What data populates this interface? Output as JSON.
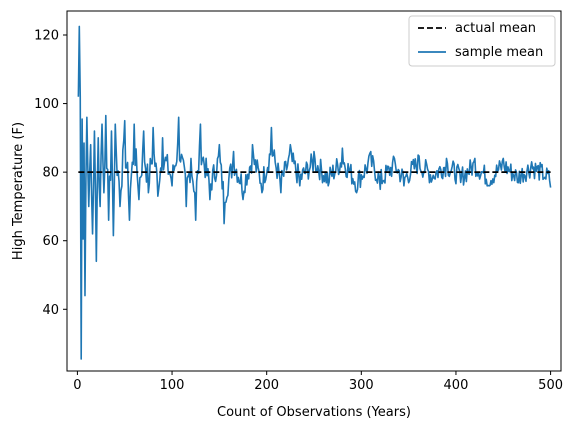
{
  "chart_data": {
    "type": "line",
    "xlabel": "Count of Observations (Years)",
    "ylabel": "High Temperature (F)",
    "xlim": [
      -11,
      511
    ],
    "ylim": [
      22,
      127
    ],
    "xticks": [
      0,
      100,
      200,
      300,
      400,
      500
    ],
    "yticks": [
      40,
      60,
      80,
      100,
      120
    ],
    "grid": false,
    "legend_position": "top-right",
    "series": [
      {
        "name": "actual mean",
        "style": "dashed",
        "color": "#000000",
        "x": [
          1,
          500
        ],
        "y": [
          80,
          80
        ]
      },
      {
        "name": "sample mean",
        "style": "solid",
        "color": "#1f77b4",
        "x_start": 1,
        "x_end": 500,
        "anchors": [
          [
            1,
            102
          ],
          [
            2,
            122.5
          ],
          [
            3,
            102
          ],
          [
            4,
            25.5
          ],
          [
            5,
            95.5
          ],
          [
            6,
            60.5
          ],
          [
            7,
            88.5
          ],
          [
            8,
            44
          ],
          [
            9,
            78
          ],
          [
            10,
            96
          ],
          [
            12,
            70
          ],
          [
            14,
            88
          ],
          [
            16,
            62
          ],
          [
            18,
            92
          ],
          [
            20,
            54
          ],
          [
            22,
            90
          ],
          [
            24,
            70
          ],
          [
            26,
            94
          ],
          [
            28,
            74
          ],
          [
            30,
            96.5
          ],
          [
            33,
            66
          ],
          [
            36,
            92
          ],
          [
            38,
            61.5
          ],
          [
            40,
            94
          ],
          [
            45,
            70
          ],
          [
            50,
            95
          ],
          [
            55,
            66
          ],
          [
            60,
            94
          ],
          [
            65,
            72
          ],
          [
            70,
            92
          ],
          [
            75,
            74
          ],
          [
            80,
            93
          ],
          [
            85,
            73
          ],
          [
            90,
            90
          ],
          [
            100,
            76
          ],
          [
            107,
            96
          ],
          [
            115,
            70
          ],
          [
            120,
            84
          ],
          [
            125,
            66
          ],
          [
            130,
            94
          ],
          [
            140,
            72
          ],
          [
            150,
            88
          ],
          [
            155,
            65
          ],
          [
            165,
            86
          ],
          [
            175,
            72
          ],
          [
            185,
            88
          ],
          [
            195,
            74
          ],
          [
            205,
            93
          ],
          [
            215,
            74
          ],
          [
            225,
            88
          ],
          [
            235,
            76
          ],
          [
            250,
            86
          ],
          [
            265,
            76
          ],
          [
            280,
            87
          ],
          [
            295,
            74
          ],
          [
            310,
            86
          ],
          [
            320,
            75
          ],
          [
            335,
            84
          ],
          [
            345,
            76
          ],
          [
            360,
            85
          ],
          [
            375,
            78
          ],
          [
            390,
            84
          ],
          [
            405,
            77
          ],
          [
            420,
            84
          ],
          [
            435,
            76
          ],
          [
            450,
            84
          ],
          [
            465,
            77
          ],
          [
            480,
            83
          ],
          [
            495,
            78
          ],
          [
            500,
            75.5
          ]
        ]
      }
    ]
  }
}
